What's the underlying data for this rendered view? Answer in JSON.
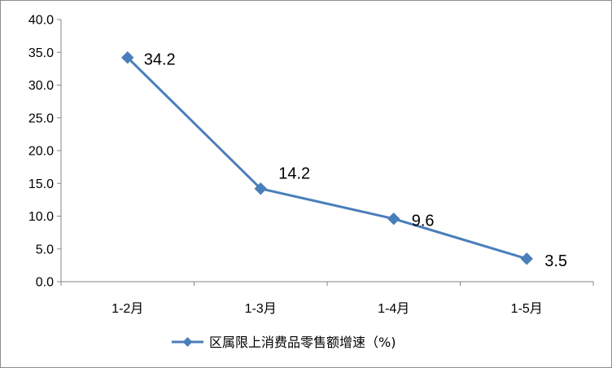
{
  "chart_data": {
    "type": "line",
    "categories": [
      "1-2月",
      "1-3月",
      "1-4月",
      "1-5月"
    ],
    "series": [
      {
        "name": "区属限上消费品零售额增速（%)",
        "values": [
          34.2,
          14.2,
          9.6,
          3.5
        ]
      }
    ],
    "data_labels": [
      "34.2",
      "14.2",
      "9.6",
      "3.5"
    ],
    "ylim": [
      0,
      40
    ],
    "yticks": [
      "0.0",
      "5.0",
      "10.0",
      "15.0",
      "20.0",
      "25.0",
      "30.0",
      "35.0",
      "40.0"
    ],
    "grid": false,
    "legend_position": "bottom",
    "colors": {
      "series": "#4a7ebb",
      "marker": "#4a7ebb",
      "axis": "#868686"
    }
  }
}
